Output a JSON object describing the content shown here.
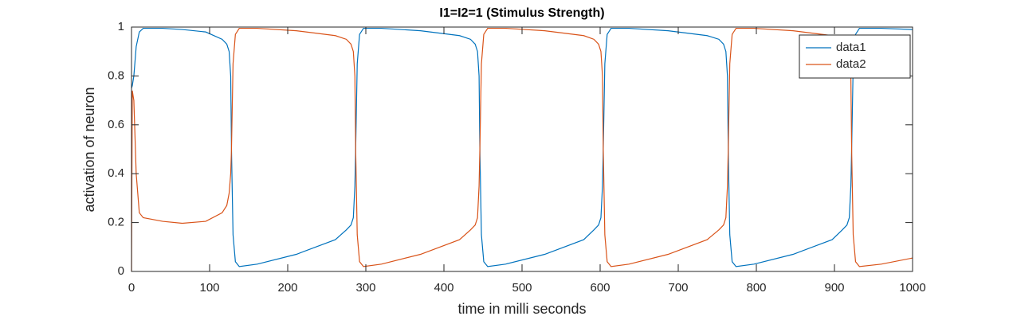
{
  "chart_data": {
    "type": "line",
    "title": "I1=I2=1 (Stimulus Strength)",
    "xlabel": "time in milli seconds",
    "ylabel": "activation of neuron",
    "xlim": [
      0,
      1000
    ],
    "ylim": [
      0,
      1
    ],
    "xticks": [
      0,
      100,
      200,
      300,
      400,
      500,
      600,
      700,
      800,
      900,
      1000
    ],
    "yticks": [
      0,
      0.2,
      0.4,
      0.6,
      0.8,
      1
    ],
    "legend_position": "upper right",
    "x": [
      0,
      1,
      3,
      6,
      10,
      15,
      40,
      65,
      95,
      116,
      122,
      125,
      127,
      128,
      130,
      133,
      138,
      161,
      211,
      261,
      275,
      281,
      284,
      286,
      287,
      289,
      292,
      297,
      320,
      370,
      420,
      434,
      440,
      443,
      445,
      446,
      448,
      451,
      456,
      479,
      529,
      579,
      592,
      598,
      601,
      603,
      604,
      606,
      609,
      614,
      637,
      687,
      737,
      752,
      758,
      761,
      763,
      764,
      766,
      769,
      774,
      797,
      847,
      897,
      910,
      916,
      919,
      921,
      922,
      924,
      927,
      932,
      960,
      1000
    ],
    "series": [
      {
        "name": "data1",
        "color": "#0072bd",
        "values": [
          0.75,
          0.76,
          0.8,
          0.92,
          0.98,
          0.995,
          0.995,
          0.99,
          0.98,
          0.95,
          0.93,
          0.9,
          0.8,
          0.5,
          0.15,
          0.04,
          0.02,
          0.03,
          0.07,
          0.13,
          0.17,
          0.19,
          0.22,
          0.35,
          0.5,
          0.85,
          0.97,
          0.995,
          0.995,
          0.985,
          0.965,
          0.95,
          0.93,
          0.9,
          0.8,
          0.5,
          0.15,
          0.04,
          0.02,
          0.03,
          0.07,
          0.13,
          0.17,
          0.19,
          0.22,
          0.35,
          0.5,
          0.85,
          0.97,
          0.995,
          0.995,
          0.985,
          0.965,
          0.95,
          0.93,
          0.9,
          0.8,
          0.5,
          0.15,
          0.04,
          0.02,
          0.03,
          0.07,
          0.13,
          0.17,
          0.19,
          0.22,
          0.35,
          0.5,
          0.85,
          0.97,
          0.995,
          0.995,
          0.99
        ]
      },
      {
        "name": "data2",
        "color": "#d95319",
        "values": [
          0,
          0.74,
          0.7,
          0.4,
          0.24,
          0.22,
          0.205,
          0.197,
          0.205,
          0.24,
          0.27,
          0.32,
          0.4,
          0.5,
          0.85,
          0.97,
          0.995,
          0.995,
          0.985,
          0.965,
          0.95,
          0.93,
          0.9,
          0.8,
          0.5,
          0.15,
          0.04,
          0.02,
          0.03,
          0.07,
          0.13,
          0.17,
          0.19,
          0.22,
          0.35,
          0.5,
          0.85,
          0.97,
          0.995,
          0.995,
          0.985,
          0.965,
          0.95,
          0.93,
          0.9,
          0.8,
          0.5,
          0.15,
          0.04,
          0.02,
          0.03,
          0.07,
          0.13,
          0.17,
          0.19,
          0.22,
          0.35,
          0.5,
          0.85,
          0.97,
          0.995,
          0.995,
          0.985,
          0.965,
          0.95,
          0.93,
          0.9,
          0.8,
          0.5,
          0.15,
          0.04,
          0.02,
          0.03,
          0.055
        ]
      }
    ]
  }
}
